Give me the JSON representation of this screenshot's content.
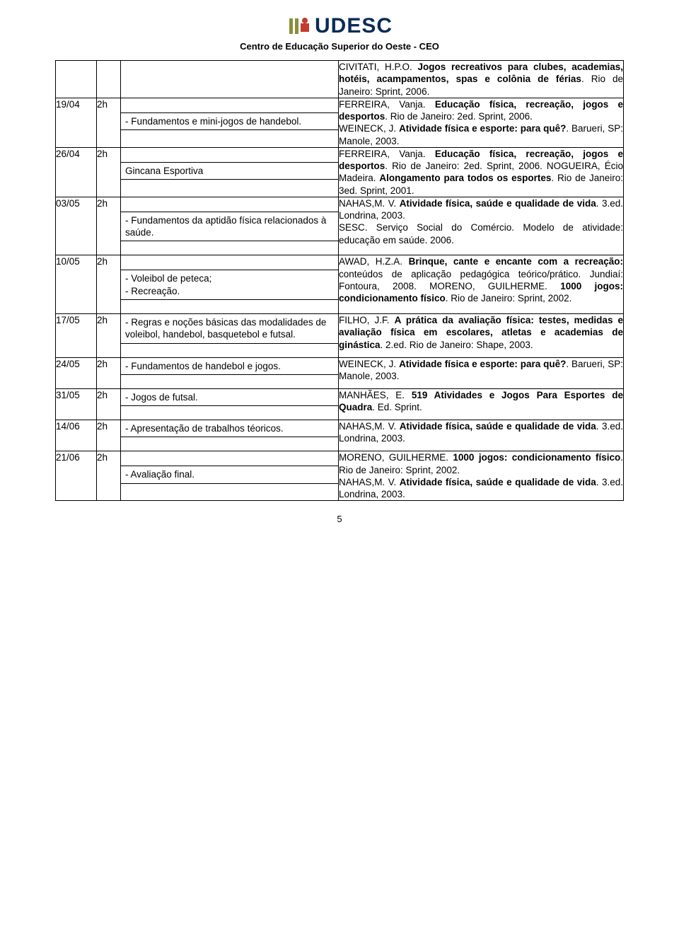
{
  "page_number": "5",
  "header": {
    "logo_text": "UDESC",
    "subtitle": "Centro de Educação Superior do Oeste - CEO",
    "logo_colors": {
      "left_bar": "#8a8f3a",
      "right_square": "#c43a2f",
      "text": "#0a2b55"
    }
  },
  "top_reference_html": "CIVITATI, H.P.O. <span class='b'>Jogos recreativos para clubes, academias, hotéis, acampamentos, spas e colônia de férias</span>. Rio de Janeiro: Sprint, 2006.",
  "rows": [
    {
      "date": "19/04",
      "hours": "2h",
      "mid_lines": [
        "- Fundamentos e mini-jogos de handebol."
      ],
      "ref_html": "FERREIRA, Vanja. <span class='b'>Educação física, recreação, jogos e desportos</span>. Rio de Janeiro: 2ed. Sprint, 2006.<br>WEINECK, J. <span class='b'>Atividade física e esporte: para quê?</span>. Barueri, SP: Manole, 2003."
    },
    {
      "date": "26/04",
      "hours": "2h",
      "mid_lines": [
        "Gincana Esportiva"
      ],
      "ref_html": "FERREIRA, Vanja. <span class='b'>Educação física, recreação, jogos e desportos</span>. Rio de Janeiro: 2ed. Sprint, 2006. NOGUEIRA, Écio Madeira. <span class='b'>Alongamento para todos os esportes</span>. Rio de Janeiro: 3ed. Sprint, 2001."
    },
    {
      "date": "03/05",
      "hours": "2h",
      "mid_lines": [
        "- Fundamentos da aptidão física relacionados à saúde."
      ],
      "ref_html": "NAHAS,M. V. <span class='b'>Atividade física, saúde e qualidade de vida</span>. 3.ed. Londrina, 2003.<br>SESC. Serviço Social do Comércio. Modelo de atividade: educação em saúde. 2006."
    },
    {
      "date": "10/05",
      "hours": "2h",
      "mid_lines": [
        "- Voleibol de peteca;<br>- Recreação."
      ],
      "ref_html": "AWAD, H.Z.A. <span class='b'>Brinque, cante e encante com a recreação:</span> conteúdos de aplicação pedagógica teórico/prático. Jundiaí: Fontoura, 2008. MORENO, GUILHERME. <span class='b'>1000 jogos: condicionamento físico</span>. Rio de Janeiro: Sprint, 2002."
    },
    {
      "date": "17/05",
      "hours": "2h",
      "mid_lines_top": [
        "- Regras e noções básicas das modalidades de voleibol, handebol, basquetebol e futsal."
      ],
      "ref_html": "FILHO, J.F. <span class='b'>A prática da avaliação física: testes, medidas e avaliação física em escolares, atletas e academias de ginástica</span>. 2.ed. Rio de Janeiro: Shape, 2003."
    },
    {
      "date": "24/05",
      "hours": "2h",
      "mid_lines_top": [
        "- Fundamentos de handebol e jogos."
      ],
      "ref_html": "WEINECK, J. <span class='b'>Atividade física e esporte: para quê?</span>. Barueri, SP: Manole, 2003."
    },
    {
      "date": "31/05",
      "hours": "2h",
      "mid_lines_top": [
        "- Jogos de futsal."
      ],
      "ref_html": "MANHÃES, E. <span class='b'>519 Atividades e Jogos Para Esportes de Quadra</span>. Ed. Sprint."
    },
    {
      "date": "14/06",
      "hours": "2h",
      "mid_lines_top": [
        "- Apresentação de trabalhos téoricos."
      ],
      "ref_html": "NAHAS,M. V. <span class='b'>Atividade física, saúde e qualidade de vida</span>. 3.ed. Londrina, 2003."
    },
    {
      "date": "21/06",
      "hours": "2h",
      "mid_lines": [
        "- Avaliação final."
      ],
      "ref_html": "MORENO, GUILHERME. <span class='b'>1000 jogos: condicionamento físico</span>. Rio de Janeiro: Sprint, 2002.<br>NAHAS,M. V. <span class='b'>Atividade física, saúde e qualidade de vida</span>. 3.ed. Londrina, 2003."
    }
  ]
}
